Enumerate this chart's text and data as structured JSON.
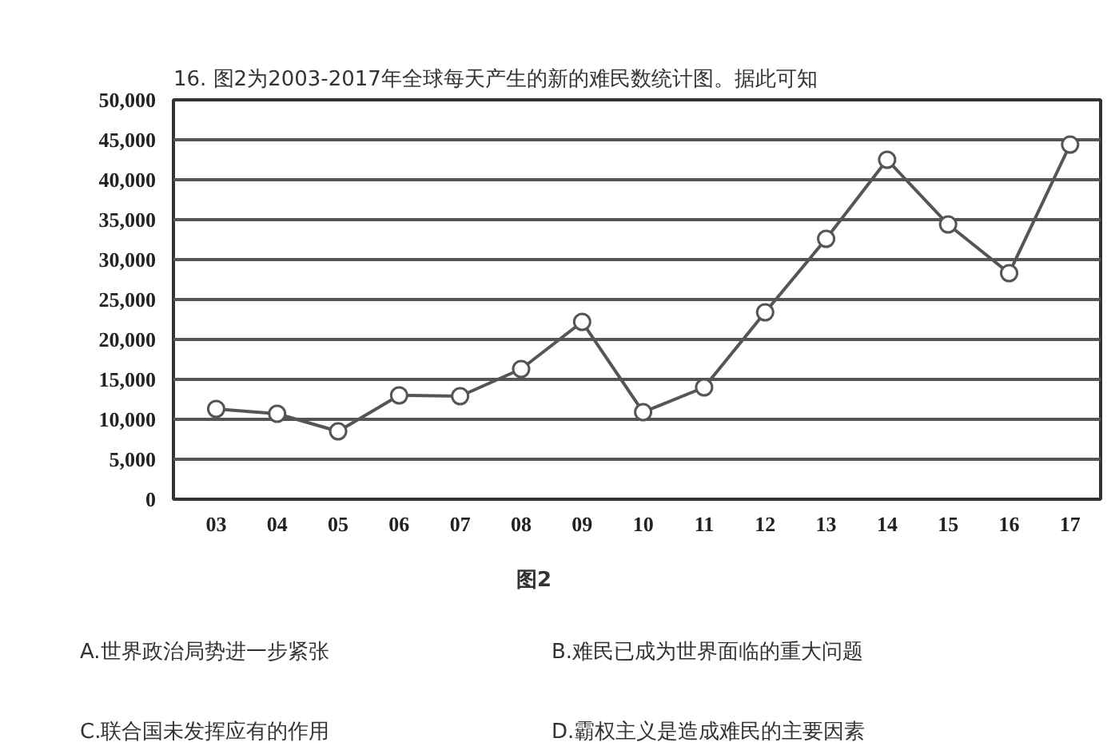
{
  "chart_data": {
    "type": "line",
    "title": "16. 图2为2003-2017年全球每天产生的新的难民数统计图。据此可知",
    "categories": [
      "03",
      "04",
      "05",
      "06",
      "07",
      "08",
      "09",
      "10",
      "11",
      "12",
      "13",
      "14",
      "15",
      "16",
      "17"
    ],
    "series": [
      {
        "color": "#555555",
        "values": [
          11300,
          10700,
          8500,
          13000,
          12900,
          16300,
          22200,
          10900,
          14000,
          23400,
          32600,
          42500,
          34400,
          28300,
          44400
        ]
      }
    ],
    "ylim": [
      0,
      50000
    ],
    "yticks": [
      {
        "value": 0,
        "label": "0"
      },
      {
        "value": 5000,
        "label": "5,000"
      },
      {
        "value": 10000,
        "label": "10,000"
      },
      {
        "value": 15000,
        "label": "15,000"
      },
      {
        "value": 20000,
        "label": "20,000"
      },
      {
        "value": 25000,
        "label": "25,000"
      },
      {
        "value": 30000,
        "label": "30,000"
      },
      {
        "value": 35000,
        "label": "35,000"
      },
      {
        "value": 40000,
        "label": "40,000"
      },
      {
        "value": 45000,
        "label": "45,000"
      },
      {
        "value": 50000,
        "label": "50,000"
      }
    ],
    "grid": "y",
    "marker": "circle",
    "line_style": "solid",
    "annotations": [
      "图2",
      "A.世界政治局势进一步紧张",
      "B.难民已成为世界面临的重大问题",
      "C.联合国未发挥应有的作用",
      "D.霸权主义是造成难民的主要因素"
    ]
  }
}
